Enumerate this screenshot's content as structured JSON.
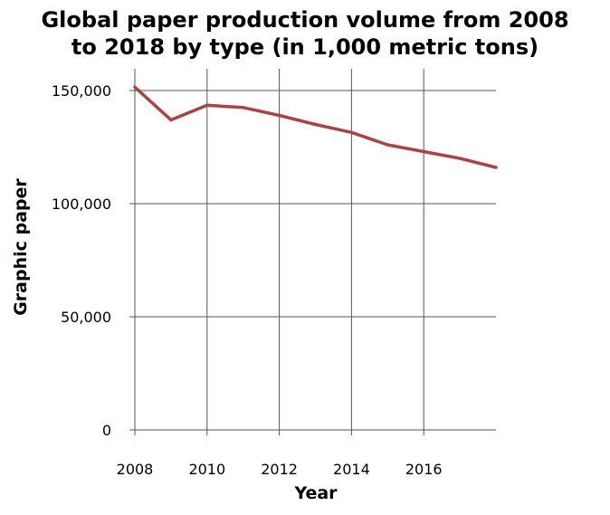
{
  "chart_data": {
    "type": "line",
    "title_lines": [
      "Global paper production volume from 2008",
      "to 2018 by type (in 1,000 metric tons)"
    ],
    "xlabel": "Year",
    "ylabel": "Graphic paper",
    "x_tick_labels": [
      "2008",
      "2010",
      "2012",
      "2014",
      "2016"
    ],
    "x_ticks": [
      2008,
      2010,
      2012,
      2014,
      2016
    ],
    "y_tick_labels": [
      "0",
      "50,000",
      "100,000",
      "150,000"
    ],
    "y_ticks": [
      0,
      50000,
      100000,
      150000
    ],
    "xlim": [
      2008,
      2018
    ],
    "ylim": [
      0,
      150000
    ],
    "grid": true,
    "series": [
      {
        "color": "#a84444",
        "x": [
          2008,
          2009,
          2010,
          2011,
          2012,
          2013,
          2014,
          2015,
          2016,
          2017,
          2018
        ],
        "values": [
          151500,
          137000,
          143500,
          142500,
          139000,
          135000,
          131500,
          126000,
          123000,
          120000,
          116000
        ]
      }
    ]
  }
}
